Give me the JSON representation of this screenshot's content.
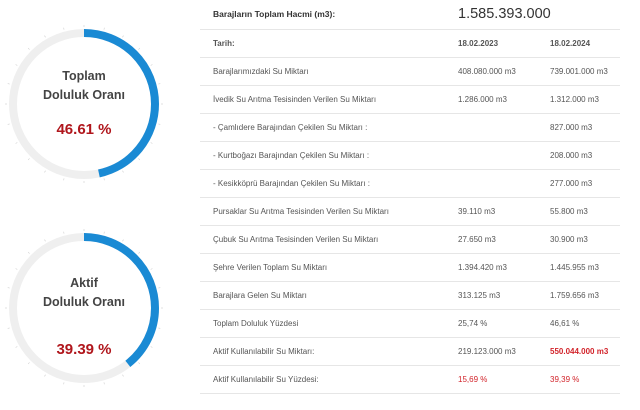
{
  "gauges": [
    {
      "line1": "Toplam",
      "line2": "Doluluk Oranı",
      "percent_text": "46.61 %",
      "fraction": 0.4661,
      "color": "#1a8ad4",
      "track": "#efefef"
    },
    {
      "line1": "Aktif",
      "line2": "Doluluk Oranı",
      "percent_text": "39.39 %",
      "fraction": 0.3939,
      "color": "#1a8ad4",
      "track": "#efefef"
    }
  ],
  "table": {
    "title_label": "Barajların Toplam Hacmi (m3):",
    "title_value": "1.585.393.000",
    "header": {
      "label": "Tarih:",
      "date1": "18.02.2023",
      "date2": "18.02.2024"
    },
    "rows": [
      {
        "label": "Barajlarımızdaki Su Miktarı",
        "v1": "408.080.000 m3",
        "v2": "739.001.000 m3"
      },
      {
        "label": "İvedik Su Arıtma Tesisinden Verilen Su Miktarı",
        "v1": "1.286.000 m3",
        "v2": "1.312.000 m3"
      },
      {
        "label": "- Çamlıdere Barajından Çekilen Su Miktarı :",
        "v1": "",
        "v2": "827.000 m3"
      },
      {
        "label": "- Kurtboğazı Barajından Çekilen Su Miktarı :",
        "v1": "",
        "v2": "208.000 m3"
      },
      {
        "label": "- Kesikköprü Barajından Çekilen Su Miktarı :",
        "v1": "",
        "v2": "277.000 m3"
      },
      {
        "label": "Pursaklar Su Arıtma Tesisinden Verilen Su Miktarı",
        "v1": "39.110 m3",
        "v2": "55.800 m3"
      },
      {
        "label": "Çubuk Su Arıtma Tesisinden Verilen Su Miktarı",
        "v1": "27.650 m3",
        "v2": "30.900 m3"
      },
      {
        "label": "Şehre Verilen Toplam Su Miktarı",
        "v1": "1.394.420 m3",
        "v2": "1.445.955 m3"
      },
      {
        "label": "Barajlara Gelen Su Miktarı",
        "v1": "313.125 m3",
        "v2": "1.759.656 m3"
      },
      {
        "label": "Toplam Doluluk Yüzdesi",
        "v1": "25,74 %",
        "v2": "46,61 %"
      },
      {
        "label": "Aktif Kullanılabilir Su Miktarı:",
        "v1": "219.123.000 m3",
        "v2": "550.044.000 m3"
      },
      {
        "label": "Aktif Kullanılabilir Su Yüzdesi:",
        "v1": "15,69 %",
        "v2": "39,39 %"
      }
    ],
    "accent_red": "#d2232a"
  }
}
